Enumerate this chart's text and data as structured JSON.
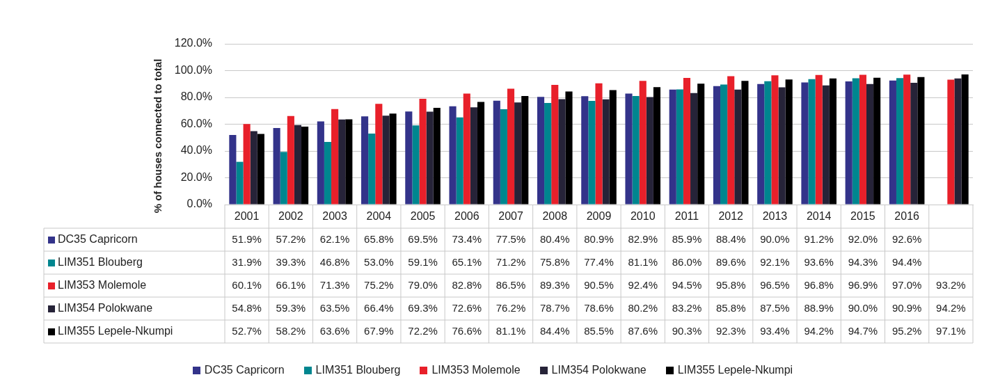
{
  "chart_data": {
    "type": "bar",
    "ylabel": "% of houses connected to total",
    "categories": [
      "2001",
      "2002",
      "2003",
      "2004",
      "2005",
      "2006",
      "2007",
      "2008",
      "2009",
      "2010",
      "2011",
      "2012",
      "2013",
      "2014",
      "2015",
      "2016",
      null
    ],
    "ylim": [
      0,
      120
    ],
    "yticks": [
      {
        "value": 0,
        "label": "0.0%"
      },
      {
        "value": 20,
        "label": "20.0%"
      },
      {
        "value": 40,
        "label": "40.0%"
      },
      {
        "value": 60,
        "label": "60.0%"
      },
      {
        "value": 80,
        "label": "80.0%"
      },
      {
        "value": 100,
        "label": "100.0%"
      },
      {
        "value": 120,
        "label": "120.0%"
      }
    ],
    "grid": "y",
    "legend": "bottom",
    "series": [
      {
        "name": "DC35 Capricorn",
        "color": "#33338a",
        "values": [
          51.9,
          57.2,
          62.1,
          65.8,
          69.5,
          73.4,
          77.5,
          80.4,
          80.9,
          82.9,
          85.9,
          88.4,
          90.0,
          91.2,
          92.0,
          92.6,
          null
        ],
        "value_labels": [
          "51.9%",
          "57.2%",
          "62.1%",
          "65.8%",
          "69.5%",
          "73.4%",
          "77.5%",
          "80.4%",
          "80.9%",
          "82.9%",
          "85.9%",
          "88.4%",
          "90.0%",
          "91.2%",
          "92.0%",
          "92.6%",
          null
        ]
      },
      {
        "name": "LIM351 Blouberg",
        "color": "#00868f",
        "values": [
          31.9,
          39.3,
          46.8,
          53.0,
          59.1,
          65.1,
          71.2,
          75.8,
          77.4,
          81.1,
          86.0,
          89.6,
          92.1,
          93.6,
          94.3,
          94.4,
          null
        ],
        "value_labels": [
          "31.9%",
          "39.3%",
          "46.8%",
          "53.0%",
          "59.1%",
          "65.1%",
          "71.2%",
          "75.8%",
          "77.4%",
          "81.1%",
          "86.0%",
          "89.6%",
          "92.1%",
          "93.6%",
          "94.3%",
          "94.4%",
          null
        ]
      },
      {
        "name": "LIM353 Molemole",
        "color": "#e8202a",
        "values": [
          60.1,
          66.1,
          71.3,
          75.2,
          79.0,
          82.8,
          86.5,
          89.3,
          90.5,
          92.4,
          94.5,
          95.8,
          96.5,
          96.8,
          96.9,
          97.0,
          93.2
        ],
        "value_labels": [
          "60.1%",
          "66.1%",
          "71.3%",
          "75.2%",
          "79.0%",
          "82.8%",
          "86.5%",
          "89.3%",
          "90.5%",
          "92.4%",
          "94.5%",
          "95.8%",
          "96.5%",
          "96.8%",
          "96.9%",
          "97.0%",
          "93.2%"
        ]
      },
      {
        "name": "LIM354 Polokwane",
        "color": "#262338",
        "values": [
          54.8,
          59.3,
          63.5,
          66.4,
          69.3,
          72.6,
          76.2,
          78.7,
          78.6,
          80.2,
          83.2,
          85.8,
          87.5,
          88.9,
          90.0,
          90.9,
          94.2
        ],
        "value_labels": [
          "54.8%",
          "59.3%",
          "63.5%",
          "66.4%",
          "69.3%",
          "72.6%",
          "76.2%",
          "78.7%",
          "78.6%",
          "80.2%",
          "83.2%",
          "85.8%",
          "87.5%",
          "88.9%",
          "90.0%",
          "90.9%",
          "94.2%"
        ]
      },
      {
        "name": "LIM355 Lepele-Nkumpi",
        "color": "#000000",
        "values": [
          52.7,
          58.2,
          63.6,
          67.9,
          72.2,
          76.6,
          81.1,
          84.4,
          85.5,
          87.6,
          90.3,
          92.3,
          93.4,
          94.2,
          94.7,
          95.2,
          97.1
        ],
        "value_labels": [
          "52.7%",
          "58.2%",
          "63.6%",
          "67.9%",
          "72.2%",
          "76.6%",
          "81.1%",
          "84.4%",
          "85.5%",
          "87.6%",
          "90.3%",
          "92.3%",
          "93.4%",
          "94.2%",
          "94.7%",
          "95.2%",
          "97.1%"
        ]
      }
    ]
  }
}
